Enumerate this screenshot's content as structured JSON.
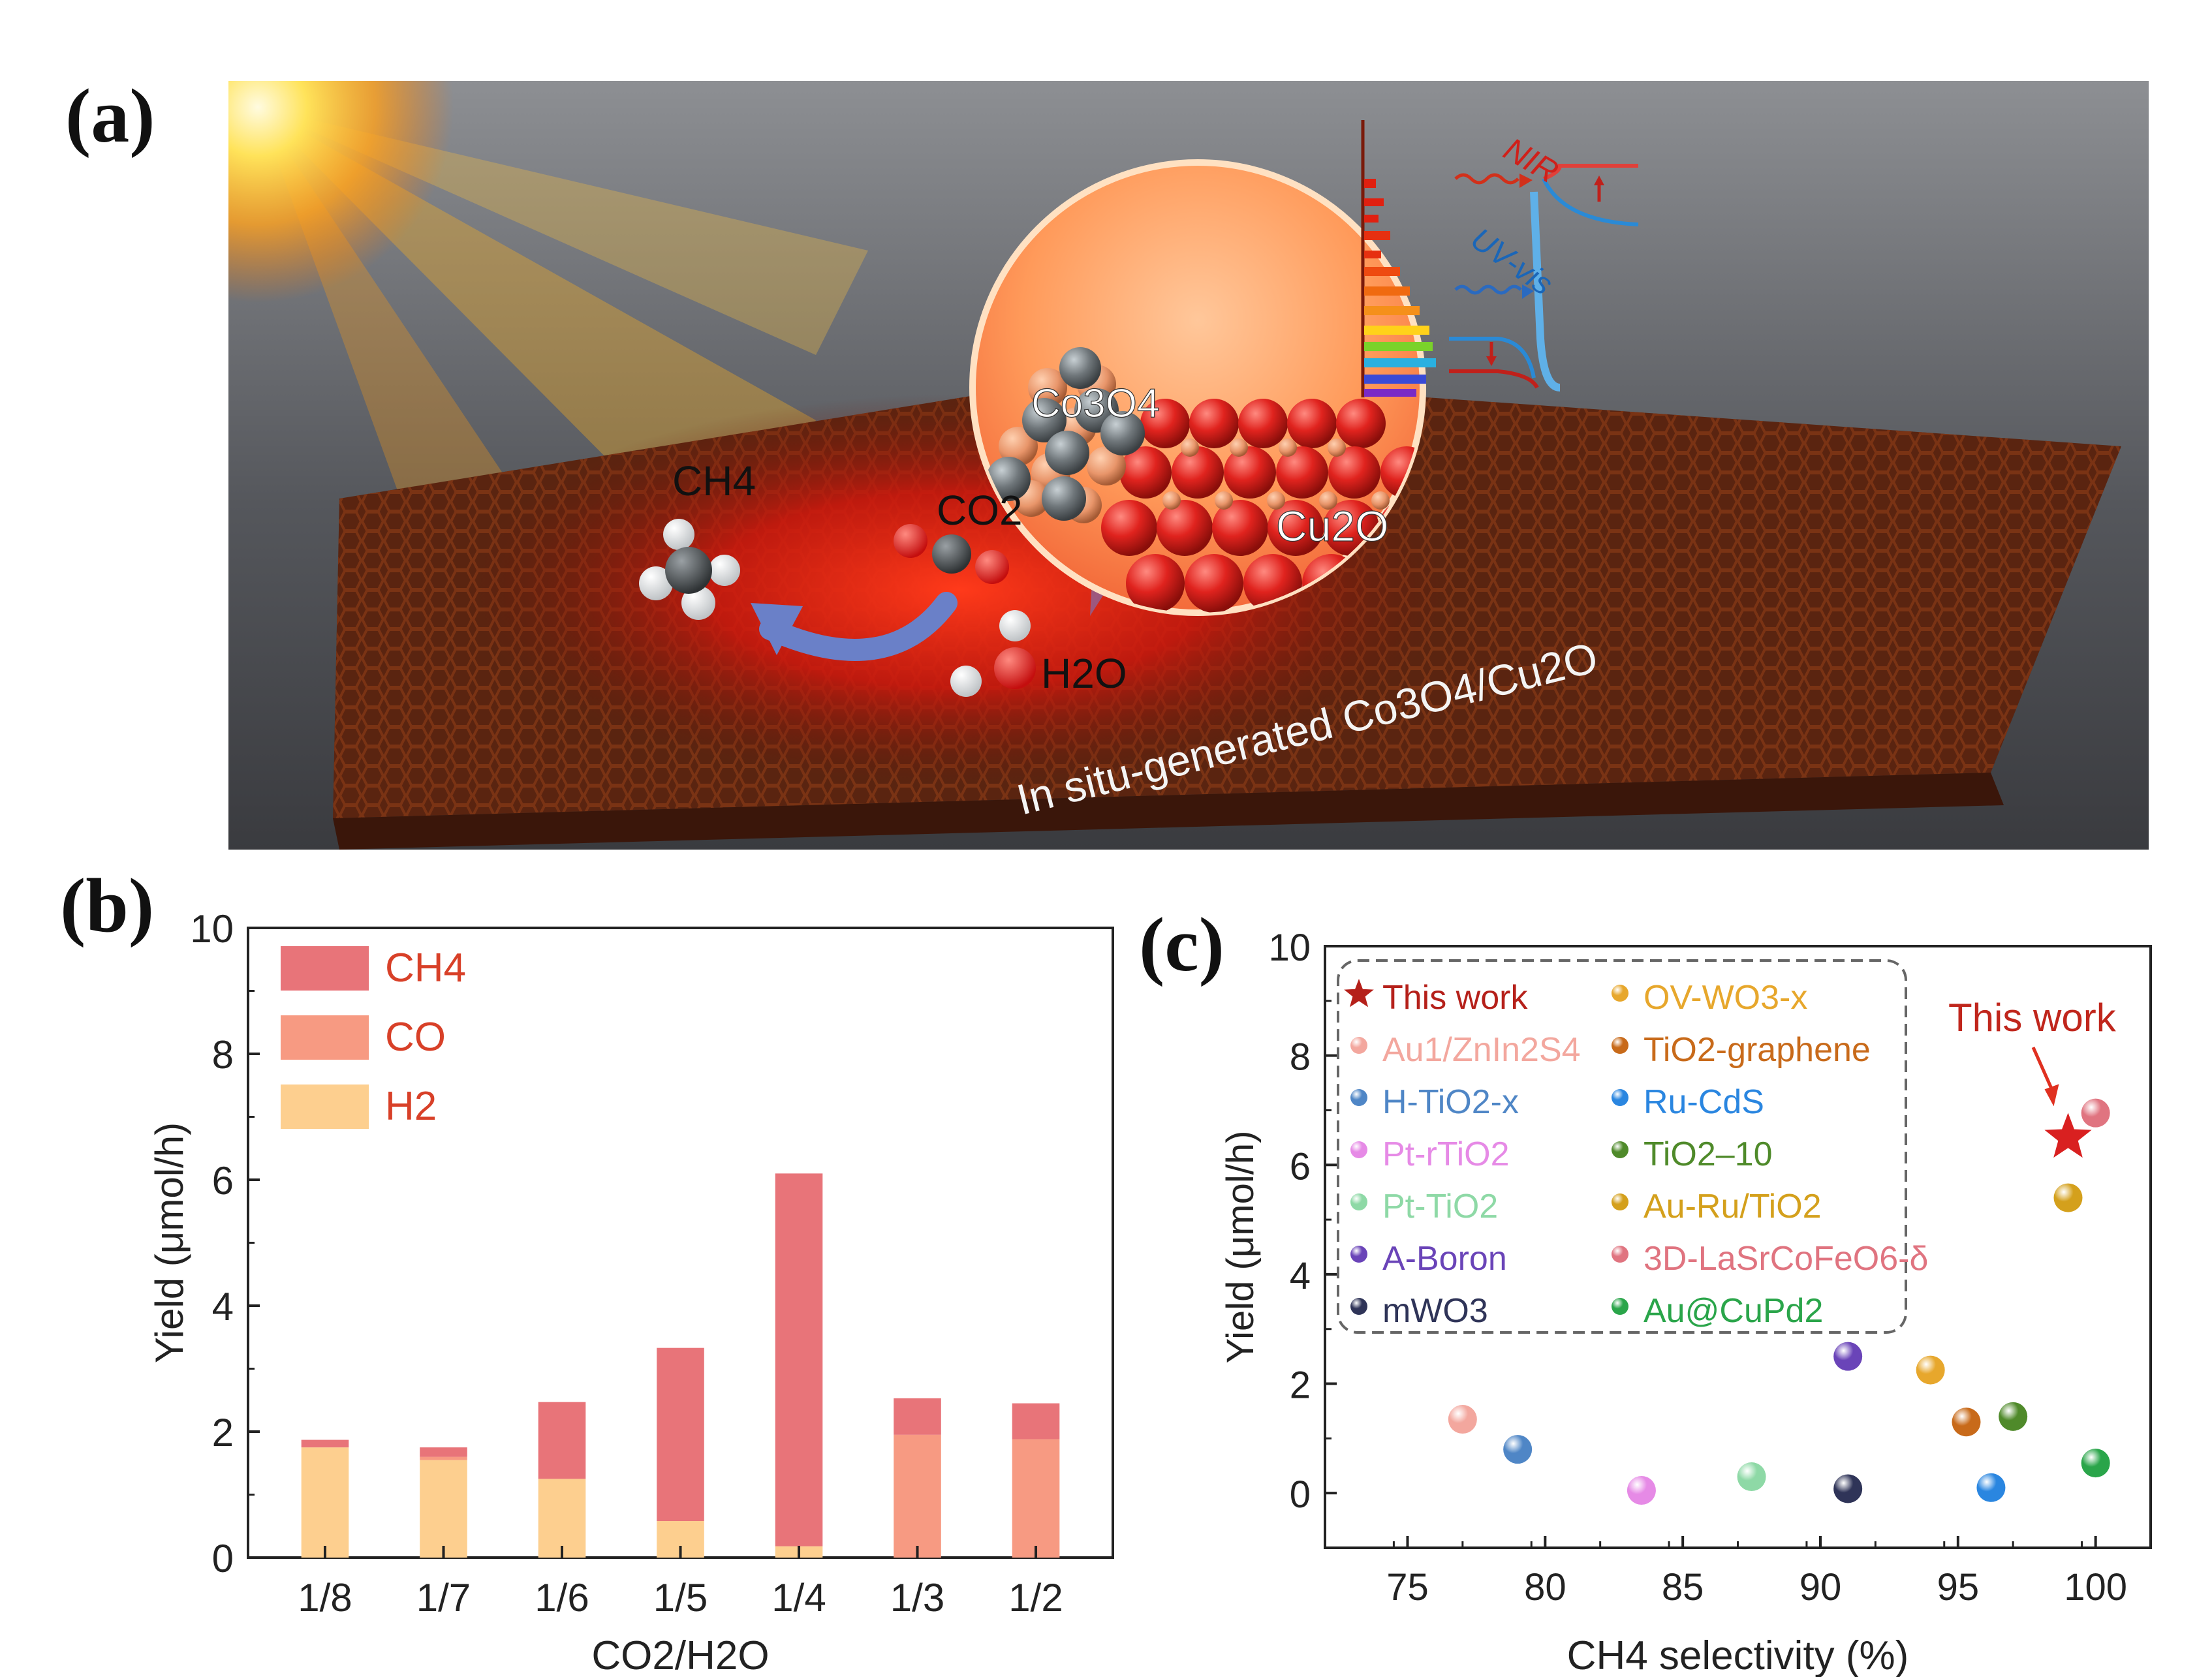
{
  "panels": {
    "a": "(a)",
    "b": "(b)",
    "c": "(c)"
  },
  "scene": {
    "molecules": {
      "ch4": "CH4",
      "co2": "CO2",
      "h2o": "H2O",
      "co3o4": "Co3O4",
      "cu2o": "Cu2O"
    },
    "light": {
      "nir": "NIR",
      "uvvis": "UV-vis"
    },
    "caption": "In situ-generated Co3O4/Cu2O",
    "colors": {
      "sun": "#ffd23a",
      "glow": "#ff2a12",
      "framework": "#6a2a10",
      "cu_atom": "#e0231e",
      "co_atom": "#6f767a",
      "o_atom": "#e8956a"
    }
  },
  "chart_data": [
    {
      "id": "b",
      "type": "bar",
      "stacked": true,
      "categories": [
        "1/8",
        "1/7",
        "1/6",
        "1/5",
        "1/4",
        "1/3",
        "1/2"
      ],
      "series": [
        {
          "name": "H2",
          "color": "#fdcf8f",
          "values": [
            1.75,
            1.55,
            1.25,
            0.58,
            0.18,
            0.0,
            0.0
          ]
        },
        {
          "name": "CO",
          "color": "#f79a82",
          "values": [
            0.0,
            0.05,
            0.0,
            0.0,
            0.0,
            1.95,
            1.88
          ]
        },
        {
          "name": "CH4",
          "color": "#e87479",
          "values": [
            0.12,
            0.15,
            1.22,
            2.75,
            5.92,
            0.58,
            0.57
          ]
        }
      ],
      "legend": [
        {
          "label": "CH4",
          "color": "#e87479"
        },
        {
          "label": "CO",
          "color": "#f79a82"
        },
        {
          "label": "H2",
          "color": "#fdcf8f"
        }
      ],
      "xlabel": "CO2/H2O",
      "ylabel": "Yield (μmol/h)",
      "ylim": [
        0,
        10
      ],
      "yticks": [
        0,
        2,
        4,
        6,
        8,
        10
      ],
      "legend_position": "top-left"
    },
    {
      "id": "c",
      "type": "scatter",
      "xlabel": "CH4 selectivity (%)",
      "ylabel": "Yield (μmol/h)",
      "xlim": [
        72,
        102
      ],
      "ylim": [
        -1,
        10
      ],
      "xticks": [
        75,
        80,
        85,
        90,
        95,
        100
      ],
      "yticks": [
        0,
        2,
        4,
        6,
        8,
        10
      ],
      "annotation": "This work",
      "annotation_color": "#c0261c",
      "points": [
        {
          "name": "This work",
          "x": 99.0,
          "y": 6.5,
          "color": "#d92020",
          "marker": "star"
        },
        {
          "name": "Au1/ZnIn2S4",
          "x": 77.0,
          "y": 1.35,
          "color": "#f3a79e",
          "marker": "ball"
        },
        {
          "name": "H-TiO2-x",
          "x": 79.0,
          "y": 0.8,
          "color": "#4f86c6",
          "marker": "ball"
        },
        {
          "name": "Pt-rTiO2",
          "x": 83.5,
          "y": 0.05,
          "color": "#e68ae6",
          "marker": "ball"
        },
        {
          "name": "Pt-TiO2",
          "x": 87.5,
          "y": 0.3,
          "color": "#8ed9a6",
          "marker": "ball"
        },
        {
          "name": "A-Boron",
          "x": 91.0,
          "y": 2.5,
          "color": "#6a44b8",
          "marker": "ball"
        },
        {
          "name": "mWO3",
          "x": 91.0,
          "y": 0.08,
          "color": "#2f3458",
          "marker": "ball"
        },
        {
          "name": "OV-WO3-x",
          "x": 94.0,
          "y": 2.25,
          "color": "#e7a72c",
          "marker": "ball"
        },
        {
          "name": "TiO2-graphene",
          "x": 95.3,
          "y": 1.3,
          "color": "#c86a1a",
          "marker": "ball"
        },
        {
          "name": "Ru-CdS",
          "x": 96.2,
          "y": 0.1,
          "color": "#2a86e0",
          "marker": "ball"
        },
        {
          "name": "TiO2–10",
          "x": 97.0,
          "y": 1.4,
          "color": "#4f8a2a",
          "marker": "ball"
        },
        {
          "name": "Au-Ru/TiO2",
          "x": 99.0,
          "y": 5.4,
          "color": "#d4a01c",
          "marker": "ball"
        },
        {
          "name": "3D-LaSrCoFeO6-δ",
          "x": 100.0,
          "y": 6.95,
          "color": "#e07480",
          "marker": "ball"
        },
        {
          "name": "Au@CuPd2",
          "x": 100.0,
          "y": 0.55,
          "color": "#2aa54a",
          "marker": "ball"
        }
      ],
      "legend_left": [
        {
          "label": "This work",
          "color": "#b5201a",
          "marker": "star"
        },
        {
          "label": "Au1/ZnIn2S4",
          "color": "#f3a79e",
          "marker": "ball"
        },
        {
          "label": "H-TiO2-x",
          "color": "#4f86c6",
          "marker": "ball"
        },
        {
          "label": "Pt-rTiO2",
          "color": "#e68ae6",
          "marker": "ball"
        },
        {
          "label": "Pt-TiO2",
          "color": "#8ed9a6",
          "marker": "ball"
        },
        {
          "label": "A-Boron",
          "color": "#6a44b8",
          "marker": "ball"
        },
        {
          "label": "mWO3",
          "color": "#2f3458",
          "marker": "ball"
        }
      ],
      "legend_right": [
        {
          "label": "OV-WO3-x",
          "color": "#e7a72c",
          "marker": "ball"
        },
        {
          "label": "TiO2-graphene",
          "color": "#c86a1a",
          "marker": "ball"
        },
        {
          "label": "Ru-CdS",
          "color": "#2a86e0",
          "marker": "ball"
        },
        {
          "label": "TiO2–10",
          "color": "#4f8a2a",
          "marker": "ball"
        },
        {
          "label": "Au-Ru/TiO2",
          "color": "#d4a01c",
          "marker": "ball"
        },
        {
          "label": "3D-LaSrCoFeO6-δ",
          "color": "#e07480",
          "marker": "ball"
        },
        {
          "label": "Au@CuPd2",
          "color": "#2aa54a",
          "marker": "ball"
        }
      ],
      "legend_position": "top-left"
    }
  ]
}
